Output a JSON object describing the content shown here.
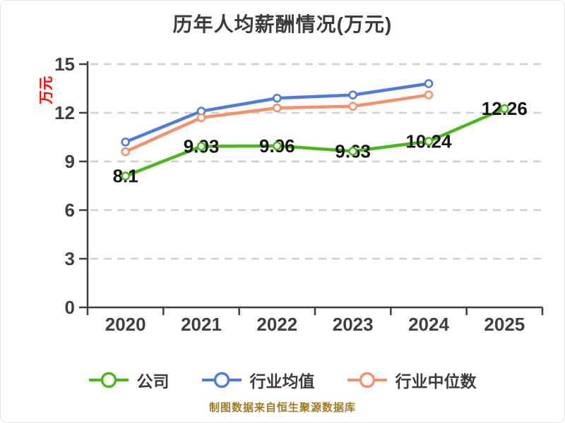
{
  "title": "历年人均薪酬情况(万元)",
  "y_axis_unit_label": "万元",
  "footer": "制图数据来自恒生聚源数据库",
  "footer_color": "#9d7b1e",
  "chart_data": {
    "type": "line",
    "title": "历年人均薪酬情况(万元)",
    "ylabel": "万元",
    "ylabel_color": "#ff0000",
    "categories": [
      "2020",
      "2021",
      "2022",
      "2023",
      "2024",
      "2025"
    ],
    "ylim": [
      0,
      15
    ],
    "yticks": [
      0,
      3,
      6,
      9,
      12,
      15
    ],
    "grid": "horizontal-dashed",
    "legend_position": "bottom",
    "series": [
      {
        "id": "company",
        "name": "公司",
        "color": "#4ab81c",
        "values": [
          8.1,
          9.93,
          9.96,
          9.63,
          10.24,
          12.26
        ],
        "point_labels": [
          "8.1",
          "9.93",
          "9.96",
          "9.63",
          "10.24",
          "12.26"
        ]
      },
      {
        "id": "industry-average",
        "name": "行业均值",
        "color": "#4d7dd9",
        "values": [
          10.2,
          12.1,
          12.9,
          13.1,
          13.8,
          null
        ]
      },
      {
        "id": "industry-median",
        "name": "行业中位数",
        "color": "#f6906a",
        "values": [
          9.6,
          11.7,
          12.3,
          12.4,
          13.1,
          null
        ]
      }
    ]
  }
}
